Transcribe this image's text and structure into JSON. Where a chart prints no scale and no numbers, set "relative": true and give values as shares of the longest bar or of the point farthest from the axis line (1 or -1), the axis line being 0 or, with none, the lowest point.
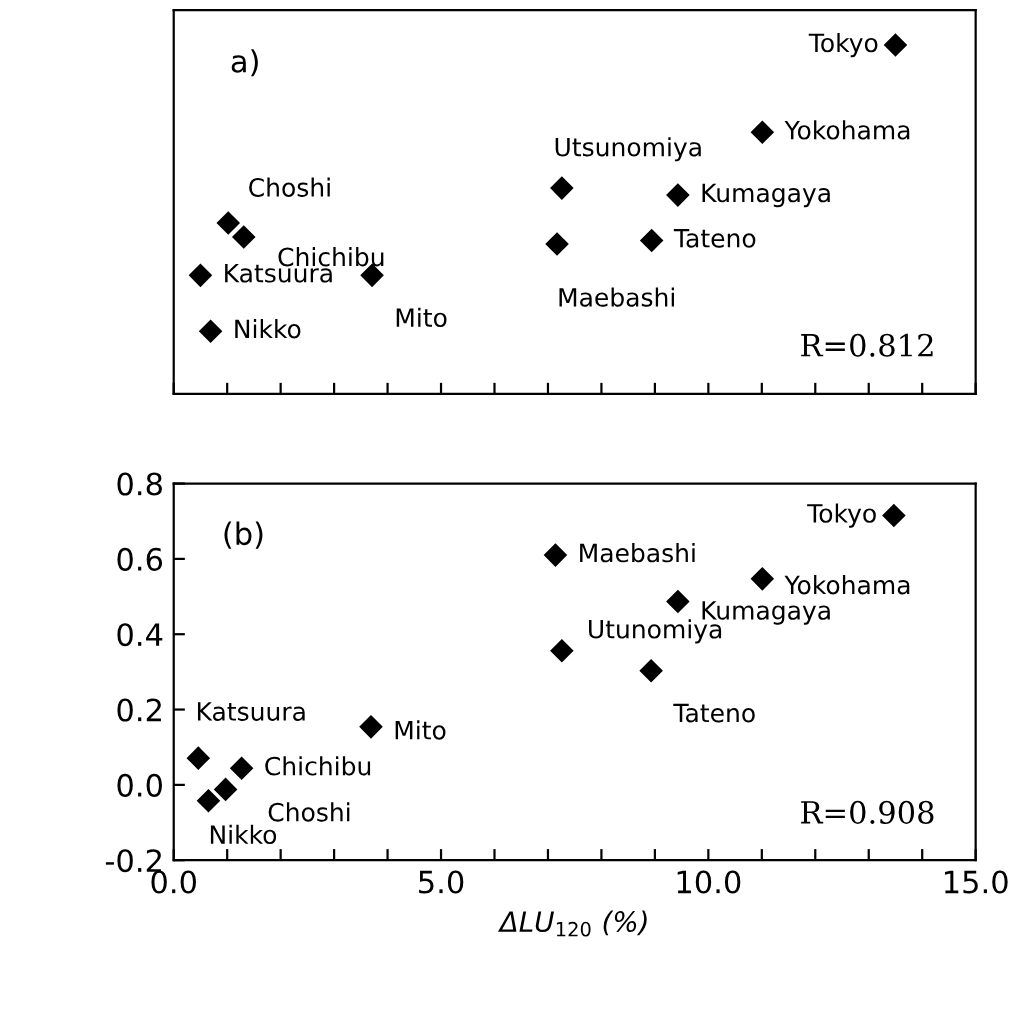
{
  "chart_data": [
    {
      "type": "scatter",
      "relative": true,
      "marker": "diamond",
      "grid": false,
      "legend": false,
      "tick_labels": false,
      "xlim": [
        0,
        15
      ],
      "xticks": [
        {
          "value": 0,
          "label": null
        },
        {
          "value": 1,
          "label": null
        },
        {
          "value": 2,
          "label": null
        },
        {
          "value": 3,
          "label": null
        },
        {
          "value": 4,
          "label": null
        },
        {
          "value": 5,
          "label": null
        },
        {
          "value": 6,
          "label": null
        },
        {
          "value": 7,
          "label": null
        },
        {
          "value": 8,
          "label": null
        },
        {
          "value": 9,
          "label": null
        },
        {
          "value": 10,
          "label": null
        },
        {
          "value": 11,
          "label": null
        },
        {
          "value": 12,
          "label": null
        },
        {
          "value": 13,
          "label": null
        },
        {
          "value": 14,
          "label": null
        },
        {
          "value": 15,
          "label": null
        }
      ],
      "series": [
        {
          "color": "#000000",
          "x": [
            13.5,
            11.01,
            7.26,
            9.43,
            8.94,
            7.17,
            1.02,
            1.31,
            3.71,
            0.5,
            0.69
          ],
          "values": [
            1.0,
            0.75,
            0.59,
            0.57,
            0.44,
            0.43,
            0.49,
            0.45,
            0.34,
            0.34,
            0.18
          ]
        }
      ],
      "annotations": [
        "a)",
        "R=0.812",
        {
          "text": "Tokyo",
          "x": 13.5,
          "y": 1.0
        },
        {
          "text": "Yokohama",
          "x": 11.01,
          "y": 0.75
        },
        {
          "text": "Utsunomiya",
          "x": 7.26,
          "y": 0.59
        },
        {
          "text": "Kumagaya",
          "x": 9.43,
          "y": 0.57
        },
        {
          "text": "Tateno",
          "x": 8.94,
          "y": 0.44
        },
        {
          "text": "Maebashi",
          "x": 7.17,
          "y": 0.43
        },
        {
          "text": "Choshi",
          "x": 1.02,
          "y": 0.49
        },
        {
          "text": "Chichibu",
          "x": 1.31,
          "y": 0.45
        },
        {
          "text": "Mito",
          "x": 3.71,
          "y": 0.34
        },
        {
          "text": "Katsuura",
          "x": 0.5,
          "y": 0.34
        },
        {
          "text": "Nikko",
          "x": 0.69,
          "y": 0.18
        }
      ]
    },
    {
      "type": "scatter",
      "marker": "diamond",
      "grid": false,
      "legend": false,
      "xlabel": "ΔLU$_{120}$ (%)",
      "xlim": [
        0,
        15
      ],
      "xticks": [
        {
          "value": 0,
          "label": "0.0"
        },
        {
          "value": 1,
          "label": null
        },
        {
          "value": 2,
          "label": null
        },
        {
          "value": 3,
          "label": null
        },
        {
          "value": 4,
          "label": null
        },
        {
          "value": 5,
          "label": "5.0"
        },
        {
          "value": 6,
          "label": null
        },
        {
          "value": 7,
          "label": null
        },
        {
          "value": 8,
          "label": null
        },
        {
          "value": 9,
          "label": null
        },
        {
          "value": 10,
          "label": "10.0"
        },
        {
          "value": 11,
          "label": null
        },
        {
          "value": 12,
          "label": null
        },
        {
          "value": 13,
          "label": null
        },
        {
          "value": 14,
          "label": null
        },
        {
          "value": 15,
          "label": "15.0"
        }
      ],
      "ylim": [
        -0.2,
        0.8
      ],
      "yticks": [
        {
          "value": -0.2,
          "label": "-0.2"
        },
        {
          "value": 0,
          "label": "0.0"
        },
        0.2,
        0.4,
        0.6,
        0.8
      ],
      "series": [
        {
          "color": "#000000",
          "x": [
            13.47,
            7.14,
            11.01,
            9.43,
            7.26,
            8.93,
            3.69,
            0.46,
            1.27,
            0.97,
            0.65
          ],
          "values": [
            0.715,
            0.61,
            0.547,
            0.487,
            0.356,
            0.303,
            0.154,
            0.071,
            0.044,
            -0.012,
            -0.042
          ]
        }
      ],
      "annotations": [
        "(b)",
        "R=0.908",
        {
          "text": "Tokyo",
          "x": 13.47,
          "y": 0.715
        },
        {
          "text": "Maebashi",
          "x": 7.14,
          "y": 0.61
        },
        {
          "text": "Yokohama",
          "x": 11.01,
          "y": 0.547
        },
        {
          "text": "Kumagaya",
          "x": 9.43,
          "y": 0.487
        },
        {
          "text": "Utunomiya",
          "x": 7.26,
          "y": 0.356
        },
        {
          "text": "Tateno",
          "x": 8.93,
          "y": 0.303
        },
        {
          "text": "Mito",
          "x": 3.69,
          "y": 0.154
        },
        {
          "text": "Katsuura",
          "x": 0.46,
          "y": 0.071
        },
        {
          "text": "Chichibu",
          "x": 1.27,
          "y": 0.044
        },
        {
          "text": "Choshi",
          "x": 0.97,
          "y": -0.012
        },
        {
          "text": "Nikko",
          "x": 0.65,
          "y": -0.042
        }
      ]
    }
  ]
}
